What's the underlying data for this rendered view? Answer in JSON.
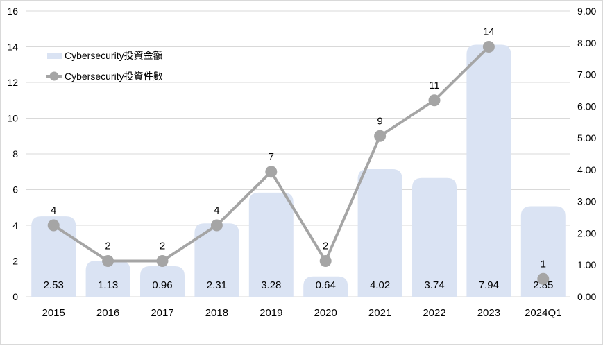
{
  "chart_data": {
    "type": "bar+line",
    "categories": [
      "2015",
      "2016",
      "2017",
      "2018",
      "2019",
      "2020",
      "2021",
      "2022",
      "2023",
      "2024Q1"
    ],
    "series": [
      {
        "name": "Cybersecurity投資金額",
        "type": "bar",
        "axis": "right",
        "values": [
          2.53,
          1.13,
          0.96,
          2.31,
          3.28,
          0.64,
          4.02,
          3.74,
          7.94,
          2.85
        ],
        "labels": [
          "2.53",
          "1.13",
          "0.96",
          "2.31",
          "3.28",
          "0.64",
          "4.02",
          "3.74",
          "7.94",
          "2.85"
        ],
        "color": "#dae3f3"
      },
      {
        "name": "Cybersecurity投資件數",
        "type": "line",
        "axis": "left",
        "values": [
          4,
          2,
          2,
          4,
          7,
          2,
          9,
          11,
          14,
          1
        ],
        "labels": [
          "4",
          "2",
          "2",
          "4",
          "7",
          "2",
          "9",
          "11",
          "14",
          "1"
        ],
        "color": "#a5a5a5"
      }
    ],
    "y_left": {
      "min": 0,
      "max": 16,
      "step": 2,
      "ticks": [
        "0",
        "2",
        "4",
        "6",
        "8",
        "10",
        "12",
        "14",
        "16"
      ]
    },
    "y_right": {
      "min": 0,
      "max": 9,
      "step": 1,
      "ticks": [
        "0.00",
        "1.00",
        "2.00",
        "3.00",
        "4.00",
        "5.00",
        "6.00",
        "7.00",
        "8.00",
        "9.00"
      ]
    },
    "grid": true,
    "legend_position": "top-left"
  }
}
